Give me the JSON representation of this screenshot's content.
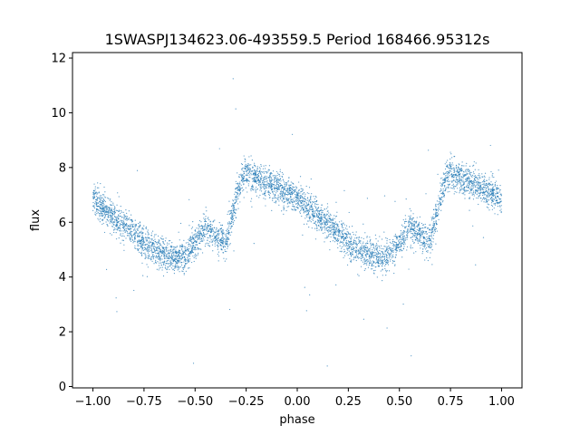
{
  "chart_data": {
    "type": "scatter",
    "title": "1SWASPJ134623.06-493559.5 Period 168466.95312s",
    "xlabel": "phase",
    "ylabel": "flux",
    "xlim": [
      -1.1,
      1.1
    ],
    "ylim": [
      -0.05,
      12.2
    ],
    "xticks": [
      -1.0,
      -0.75,
      -0.5,
      -0.25,
      0.0,
      0.25,
      0.5,
      0.75,
      1.0
    ],
    "xtick_labels": [
      "−1.00",
      "−0.75",
      "−0.50",
      "−0.25",
      "0.00",
      "0.25",
      "0.50",
      "0.75",
      "1.00"
    ],
    "yticks": [
      0,
      2,
      4,
      6,
      8,
      10,
      12
    ],
    "ytick_labels": [
      "0",
      "2",
      "4",
      "6",
      "8",
      "10",
      "12"
    ],
    "grid": false,
    "point_color": "#1f77b4",
    "series": [
      {
        "trend": {
          "phase": [
            -1.0,
            -0.9,
            -0.8,
            -0.7,
            -0.6,
            -0.55,
            -0.5,
            -0.45,
            -0.4,
            -0.35,
            -0.3,
            -0.27,
            -0.25,
            -0.2,
            -0.1,
            0.0,
            0.1,
            0.2,
            0.3,
            0.4,
            0.45,
            0.5,
            0.55,
            0.6,
            0.65,
            0.7,
            0.73,
            0.75,
            0.8,
            0.9,
            1.0
          ],
          "flux": [
            6.85,
            6.2,
            5.6,
            5.0,
            4.7,
            4.75,
            5.2,
            5.8,
            5.5,
            5.3,
            6.8,
            7.6,
            7.8,
            7.6,
            7.3,
            6.85,
            6.2,
            5.6,
            5.0,
            4.7,
            4.75,
            5.2,
            5.8,
            5.5,
            5.3,
            6.8,
            7.6,
            7.8,
            7.6,
            7.3,
            6.85
          ]
        }
      }
    ]
  }
}
